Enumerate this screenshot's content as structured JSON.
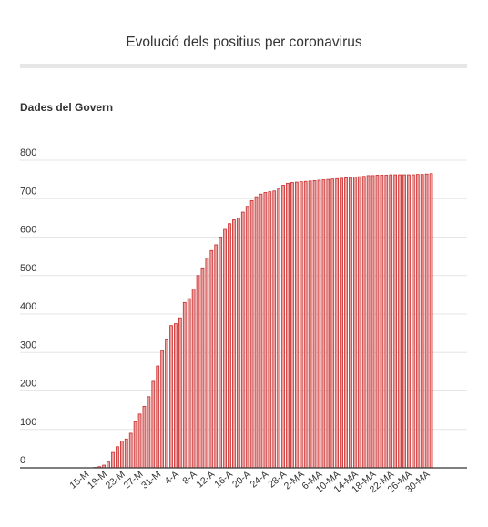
{
  "header": {
    "title": "Evolució dels positius per coronavirus",
    "subtitle": "Dades del Govern"
  },
  "colors": {
    "bar_fill": "#e8a1a1",
    "bar_stroke": "#cc2a2a",
    "grid": "#e6e6e6",
    "axis": "#333333"
  },
  "chart_data": {
    "type": "bar",
    "title": "Evolució dels positius per coronavirus",
    "subtitle": "Dades del Govern",
    "xlabel": "",
    "ylabel": "",
    "ylim": [
      0,
      800
    ],
    "y_ticks": [
      0,
      100,
      200,
      300,
      400,
      500,
      600,
      700,
      800
    ],
    "grid": true,
    "x_tick_labels": [
      "15-M",
      "19-M",
      "23-M",
      "27-M",
      "31-M",
      "4-A",
      "8-A",
      "12-A",
      "16-A",
      "20-A",
      "24-A",
      "28-A",
      "2-MA",
      "6-MA",
      "10-MA",
      "14-MA",
      "18-MA",
      "22-MA",
      "26-MA",
      "30-MA"
    ],
    "x_tick_every": 4,
    "series": [
      {
        "values": [
          0,
          0,
          1,
          3,
          7,
          15,
          40,
          55,
          70,
          75,
          90,
          120,
          140,
          160,
          185,
          225,
          265,
          305,
          335,
          370,
          375,
          390,
          430,
          440,
          465,
          500,
          520,
          545,
          565,
          580,
          600,
          620,
          635,
          645,
          650,
          665,
          680,
          695,
          705,
          712,
          716,
          718,
          720,
          725,
          735,
          740,
          742,
          743,
          744,
          745,
          746,
          747,
          748,
          749,
          750,
          751,
          752,
          753,
          754,
          755,
          756,
          757,
          758,
          760,
          760,
          761,
          761,
          761,
          762,
          762,
          762,
          762,
          762,
          762,
          763,
          763,
          764,
          765
        ]
      }
    ]
  }
}
